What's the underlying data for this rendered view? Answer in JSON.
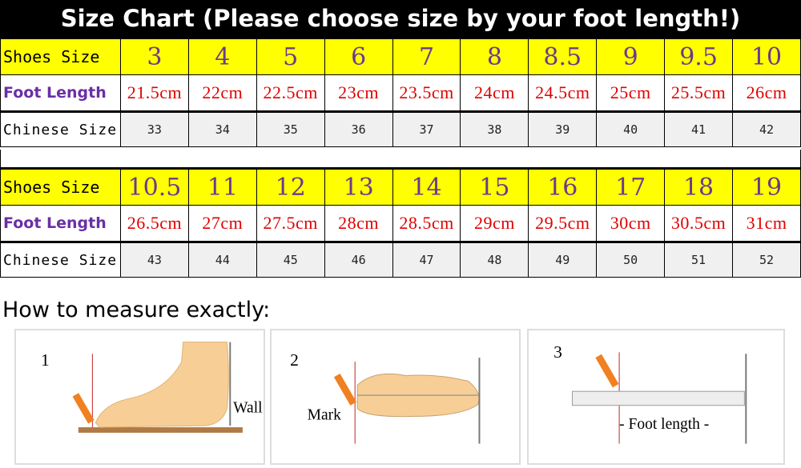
{
  "title": "Size Chart (Please choose size by your foot length!)",
  "row_labels": {
    "shoes_size": "Shoes Size",
    "foot_length": "Foot Length",
    "chinese_size": "Chinese Size"
  },
  "table1": {
    "shoes_size": [
      "3",
      "4",
      "5",
      "6",
      "7",
      "8",
      "8.5",
      "9",
      "9.5",
      "10"
    ],
    "foot_length": [
      "21.5cm",
      "22cm",
      "22.5cm",
      "23cm",
      "23.5cm",
      "24cm",
      "24.5cm",
      "25cm",
      "25.5cm",
      "26cm"
    ],
    "chinese_size": [
      "33",
      "34",
      "35",
      "36",
      "37",
      "38",
      "39",
      "40",
      "41",
      "42"
    ]
  },
  "table2": {
    "shoes_size": [
      "10.5",
      "11",
      "12",
      "13",
      "14",
      "15",
      "16",
      "17",
      "18",
      "19"
    ],
    "foot_length": [
      "26.5cm",
      "27cm",
      "27.5cm",
      "28cm",
      "28.5cm",
      "29cm",
      "29.5cm",
      "30cm",
      "30.5cm",
      "31cm"
    ],
    "chinese_size": [
      "43",
      "44",
      "45",
      "46",
      "47",
      "48",
      "49",
      "50",
      "51",
      "52"
    ]
  },
  "how_to": {
    "heading": "How to measure exactly:",
    "steps": [
      {
        "number": "1",
        "label": "Wall"
      },
      {
        "number": "2",
        "label": "Mark"
      },
      {
        "number": "3",
        "label": "- Foot length -"
      }
    ]
  },
  "colors": {
    "header_bg": "#000000",
    "size_row": "#ffff00",
    "size_text": "#6a3a8e",
    "length_text": "#e00000",
    "foot_label": "#6a2fa5"
  }
}
